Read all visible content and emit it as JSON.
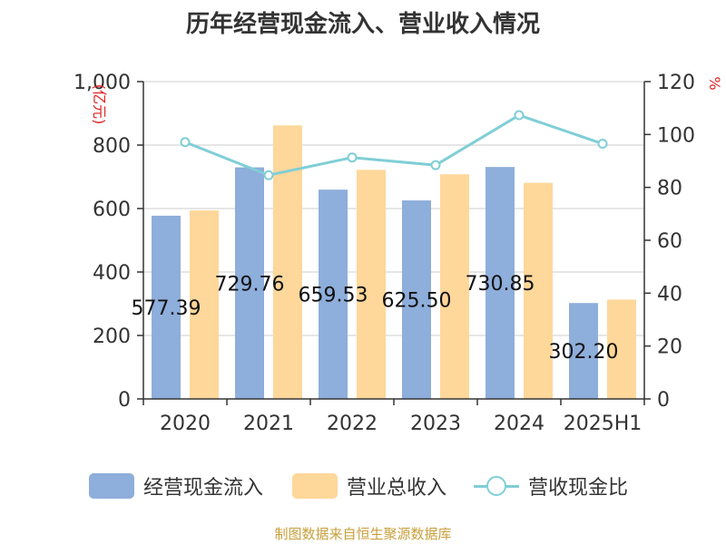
{
  "chart_data": {
    "type": "bar",
    "title": "历年经营现金流入、营业收入情况",
    "categories": [
      "2020",
      "2021",
      "2022",
      "2023",
      "2024",
      "2025H1"
    ],
    "y_left": {
      "label": "(亿元)",
      "ticks": [
        "0",
        "200",
        "400",
        "600",
        "800",
        "1,000"
      ],
      "ylim": [
        0,
        1000
      ]
    },
    "y_right": {
      "label": "%",
      "ticks": [
        "0",
        "20",
        "40",
        "60",
        "80",
        "100",
        "120"
      ],
      "ylim": [
        0,
        120
      ]
    },
    "series": [
      {
        "name": "经营现金流入",
        "kind": "bar",
        "axis": "left",
        "color": "#8eaedb",
        "values": [
          577.39,
          729.76,
          659.53,
          625.5,
          730.85,
          302.2
        ],
        "labels": [
          "577.39",
          "729.76",
          "659.53",
          "625.50",
          "730.85",
          "302.20"
        ]
      },
      {
        "name": "营业总收入",
        "kind": "bar",
        "axis": "left",
        "color": "#fed79a",
        "values": [
          594,
          862,
          722,
          708,
          681,
          313
        ]
      },
      {
        "name": "营收现金比",
        "kind": "line",
        "axis": "right",
        "color": "#80ced6",
        "values": [
          97.1,
          84.6,
          91.3,
          88.4,
          107.3,
          96.5
        ]
      }
    ],
    "grid": true,
    "legend": "bottom"
  },
  "source_text": "制图数据来自恒生聚源数据库"
}
